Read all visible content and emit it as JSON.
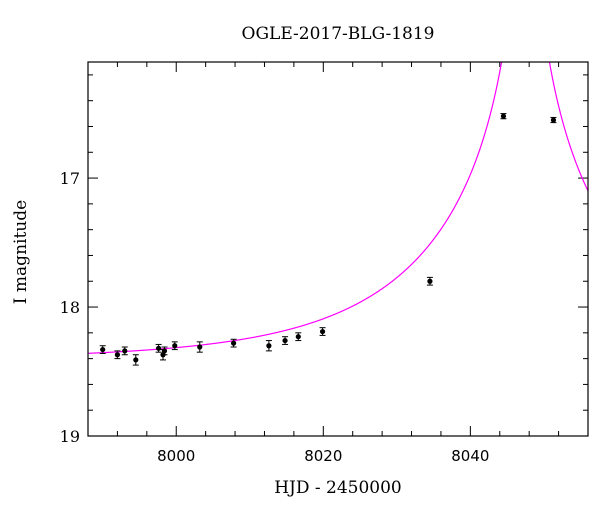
{
  "chart_data": {
    "type": "scatter",
    "title": "OGLE-2017-BLG-1819",
    "xlabel": "HJD - 2450000",
    "ylabel": "I magnitude",
    "xlim": [
      7988,
      8056
    ],
    "ylim": [
      19.0,
      16.1
    ],
    "y_inverted": true,
    "x_ticks": [
      8000,
      8020,
      8040
    ],
    "y_ticks": [
      17,
      18,
      19
    ],
    "grid": false,
    "colors": {
      "points": "#000000",
      "model": "#ff00ff",
      "axes": "#000000"
    },
    "series": [
      {
        "kind": "points",
        "x": [
          7990.0,
          7992.0,
          7993.0,
          7994.5,
          7997.6,
          7998.2,
          7998.4,
          7999.8,
          8003.2,
          8007.8,
          8012.6,
          8014.8,
          8016.6,
          8019.9,
          8034.5,
          8044.5,
          8051.3
        ],
        "y": [
          18.33,
          18.37,
          18.34,
          18.41,
          18.32,
          18.37,
          18.34,
          18.3,
          18.31,
          18.28,
          18.3,
          18.26,
          18.23,
          18.19,
          17.8,
          16.52,
          16.55
        ],
        "yerr": [
          0.03,
          0.03,
          0.03,
          0.04,
          0.03,
          0.04,
          0.03,
          0.03,
          0.04,
          0.03,
          0.04,
          0.03,
          0.03,
          0.03,
          0.03,
          0.02,
          0.02
        ]
      },
      {
        "kind": "model",
        "t0": 8047.5,
        "tE": 27.5,
        "u0": 0.018,
        "m_base": 18.41
      }
    ]
  }
}
